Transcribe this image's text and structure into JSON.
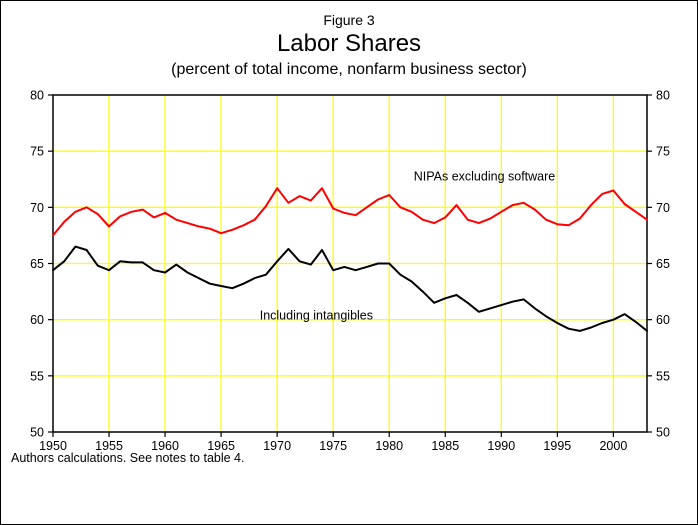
{
  "chart_data": {
    "type": "line",
    "figure_label": "Figure 3",
    "title": "Labor Shares",
    "subtitle": "(percent of total income, nonfarm business sector)",
    "footnote": "Authors calculations.  See notes to table 4.",
    "xlabel": "",
    "ylabel": "",
    "xlim": [
      1950,
      2003
    ],
    "ylim": [
      50,
      80
    ],
    "xticks": [
      1950,
      1955,
      1960,
      1965,
      1970,
      1975,
      1980,
      1985,
      1990,
      1995,
      2000
    ],
    "yticks": [
      50,
      55,
      60,
      65,
      70,
      75,
      80
    ],
    "grid": true,
    "grid_color": "#ffff00",
    "background": "#ffffff",
    "x": [
      1950,
      1951,
      1952,
      1953,
      1954,
      1955,
      1956,
      1957,
      1958,
      1959,
      1960,
      1961,
      1962,
      1963,
      1964,
      1965,
      1966,
      1967,
      1968,
      1969,
      1970,
      1971,
      1972,
      1973,
      1974,
      1975,
      1976,
      1977,
      1978,
      1979,
      1980,
      1981,
      1982,
      1983,
      1984,
      1985,
      1986,
      1987,
      1988,
      1989,
      1990,
      1991,
      1992,
      1993,
      1994,
      1995,
      1996,
      1997,
      1998,
      1999,
      2000,
      2001,
      2002,
      2003
    ],
    "series": [
      {
        "name": "NIPAs excluding software",
        "color": "#ff0000",
        "values": [
          67.5,
          68.7,
          69.6,
          70.0,
          69.4,
          68.3,
          69.2,
          69.6,
          69.8,
          69.1,
          69.5,
          68.9,
          68.6,
          68.3,
          68.1,
          67.7,
          68.0,
          68.4,
          68.9,
          70.1,
          71.7,
          70.4,
          71.0,
          70.6,
          71.7,
          69.9,
          69.5,
          69.3,
          70.0,
          70.7,
          71.1,
          70.0,
          69.6,
          68.9,
          68.6,
          69.1,
          70.2,
          68.9,
          68.6,
          69.0,
          69.6,
          70.2,
          70.4,
          69.8,
          68.9,
          68.5,
          68.4,
          69.0,
          70.2,
          71.2,
          71.5,
          70.3,
          69.6,
          68.9
        ]
      },
      {
        "name": "Including intangibles",
        "color": "#000000",
        "values": [
          64.4,
          65.2,
          66.5,
          66.2,
          64.8,
          64.4,
          65.2,
          65.1,
          65.1,
          64.4,
          64.2,
          64.9,
          64.2,
          63.7,
          63.2,
          63.0,
          62.8,
          63.2,
          63.7,
          64.0,
          65.2,
          66.3,
          65.2,
          64.9,
          66.2,
          64.4,
          64.7,
          64.4,
          64.7,
          65.0,
          65.0,
          64.0,
          63.4,
          62.5,
          61.5,
          61.9,
          62.2,
          61.5,
          60.7,
          61.0,
          61.3,
          61.6,
          61.8,
          61.0,
          60.3,
          59.7,
          59.2,
          59.0,
          59.3,
          59.7,
          60.0,
          60.5,
          59.8,
          59.0
        ]
      }
    ],
    "annotations": [
      {
        "text": "NIPAs excluding software",
        "x": 1988.5,
        "y": 72.4,
        "color": "#000000"
      },
      {
        "text": "Including intangibles",
        "x": 1973.5,
        "y": 60.0,
        "color": "#000000"
      }
    ],
    "legend_position": "none"
  }
}
